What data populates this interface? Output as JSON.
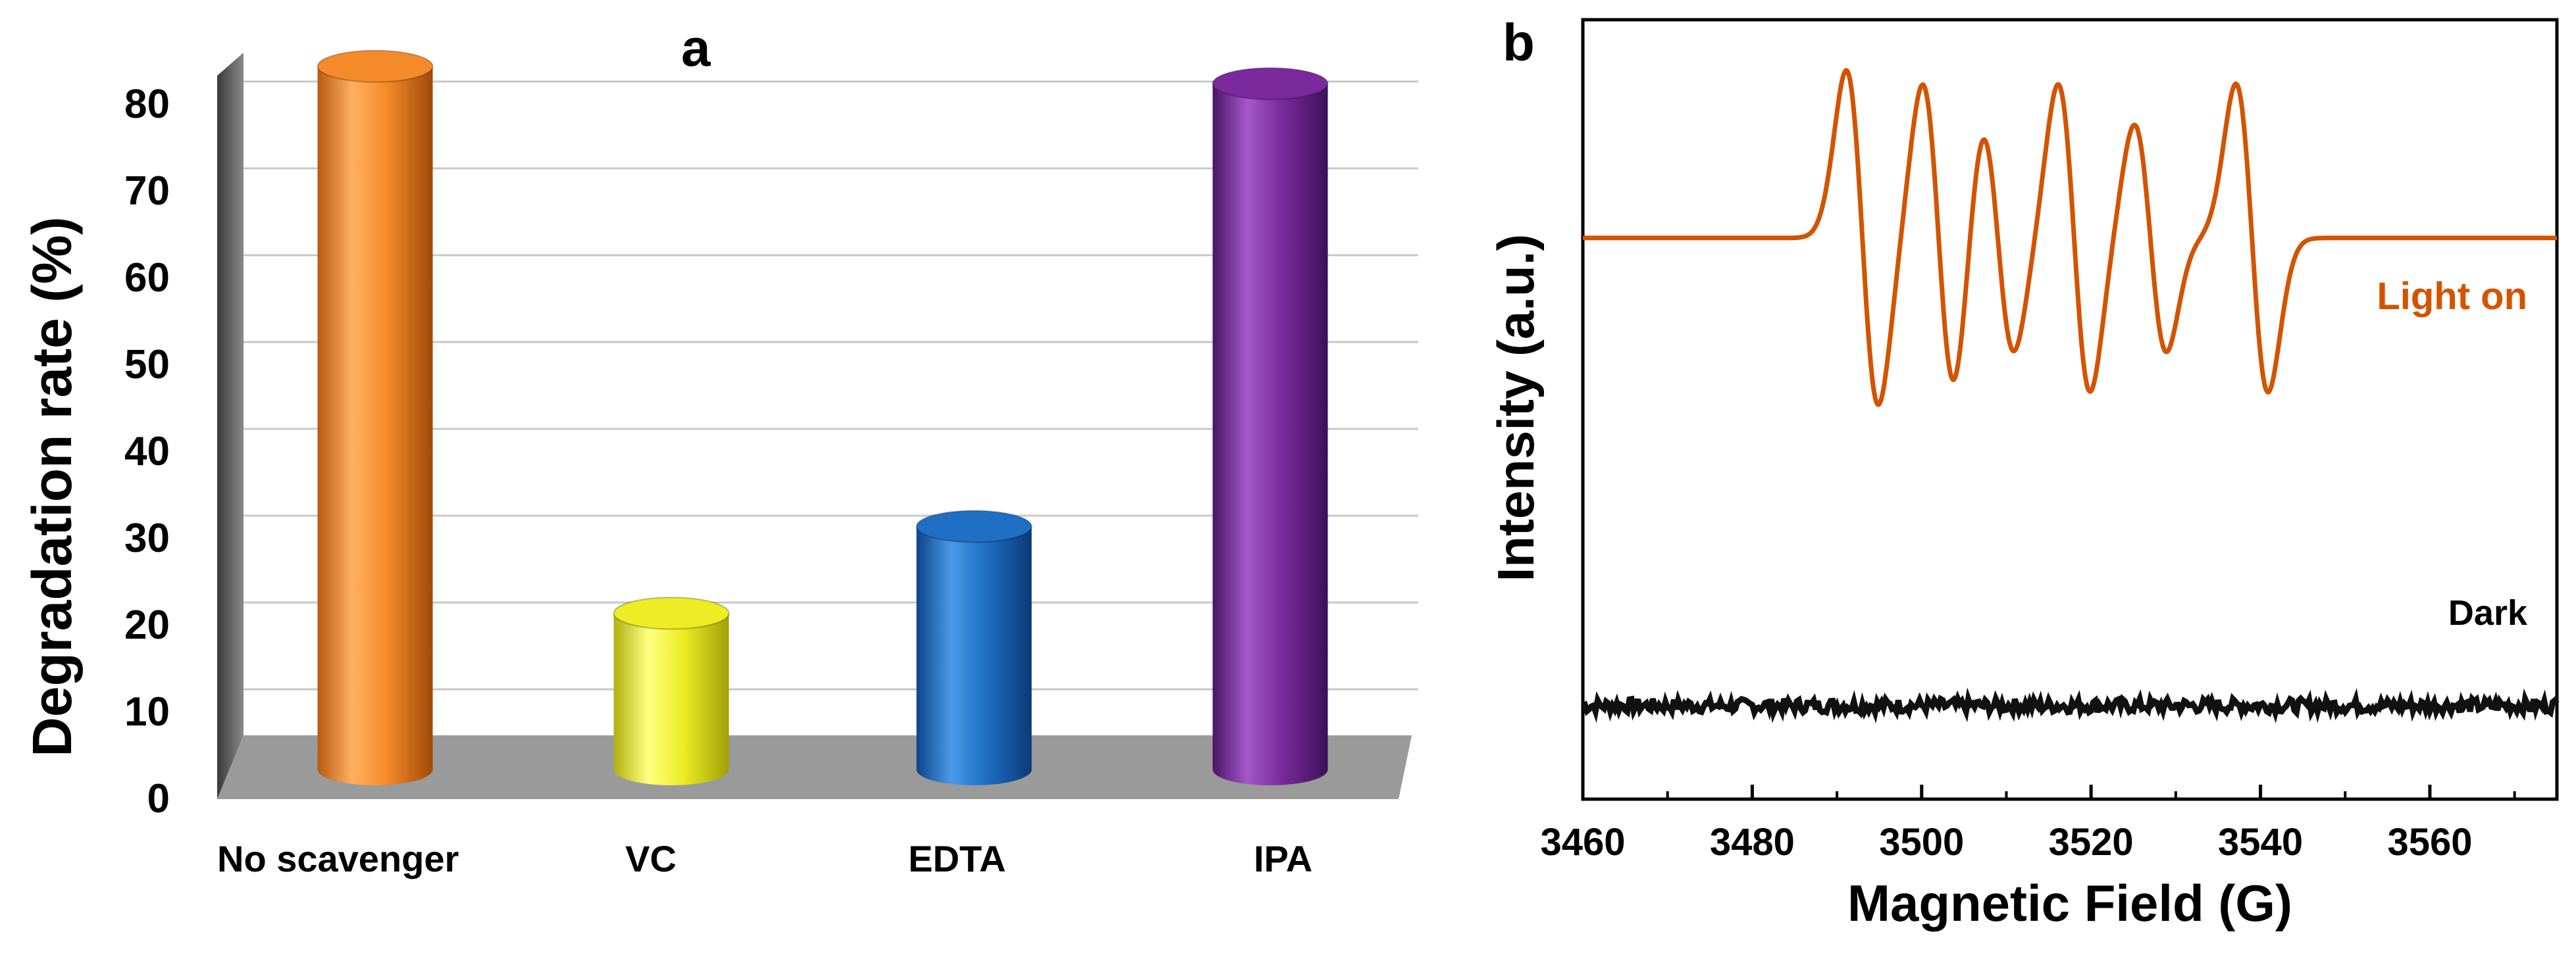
{
  "chart_data": [
    {
      "panel": "a",
      "type": "bar",
      "ylabel": "Degradation  rate (%)",
      "xlabel": "",
      "ylim": [
        0,
        85
      ],
      "yticks": [
        0,
        10,
        20,
        30,
        40,
        50,
        60,
        70,
        80
      ],
      "grid": true,
      "categories": [
        "No scavenger",
        "VC",
        "EDTA",
        "IPA"
      ],
      "values": [
        81,
        18,
        28,
        79
      ],
      "colors": [
        "#f58a2a",
        "#eded25",
        "#1f6fc4",
        "#7a2a9c"
      ]
    },
    {
      "panel": "b",
      "type": "line",
      "xlabel": "Magnetic Field (G)",
      "ylabel": "Intensity (a.u.)",
      "xlim": [
        3460,
        3575
      ],
      "xticks": [
        3460,
        3480,
        3500,
        3520,
        3540,
        3560
      ],
      "grid": false,
      "series": [
        {
          "name": "Light on",
          "color": "#d35400",
          "baseline": 0.72,
          "peaks": [
            {
              "center": 3493,
              "amp": 1.0
            },
            {
              "center": 3502,
              "amp": 0.92
            },
            {
              "center": 3509,
              "amp": 0.68
            },
            {
              "center": 3518,
              "amp": 0.92
            },
            {
              "center": 3527,
              "amp": 0.68
            },
            {
              "center": 3539,
              "amp": 0.92
            }
          ]
        },
        {
          "name": "Dark",
          "color": "#111111",
          "baseline": 0.12
        }
      ]
    }
  ]
}
